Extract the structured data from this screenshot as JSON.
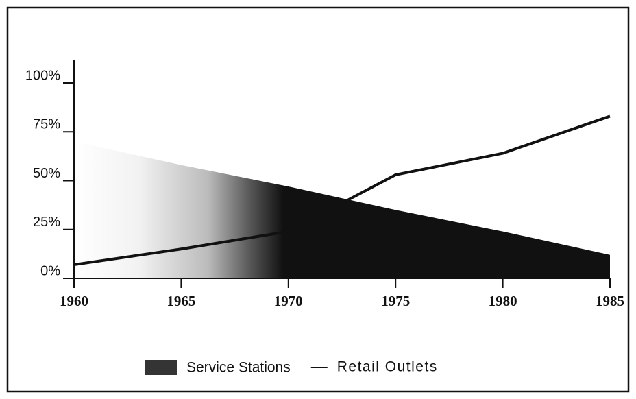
{
  "chart_data": {
    "type": "line",
    "x": [
      1960,
      1965,
      1970,
      1975,
      1980,
      1985
    ],
    "series": [
      {
        "name": "Service Stations",
        "type": "area",
        "color": "#111111",
        "values": [
          70,
          58,
          47,
          35,
          24,
          12
        ]
      },
      {
        "name": "Retail Outlets",
        "type": "line",
        "color": "#111111",
        "values": [
          7,
          15,
          24,
          53,
          64,
          83
        ]
      }
    ],
    "xlim": [
      1960,
      1985
    ],
    "xticks": [
      1960,
      1965,
      1970,
      1975,
      1980,
      1985
    ],
    "ylim": [
      0,
      100
    ],
    "yticks": [
      {
        "value": 0,
        "label": "0%"
      },
      {
        "value": 25,
        "label": "25%"
      },
      {
        "value": 50,
        "label": "50%"
      },
      {
        "value": 75,
        "label": "75%"
      },
      {
        "value": 100,
        "label": "100%"
      }
    ],
    "legend": "bottom"
  }
}
